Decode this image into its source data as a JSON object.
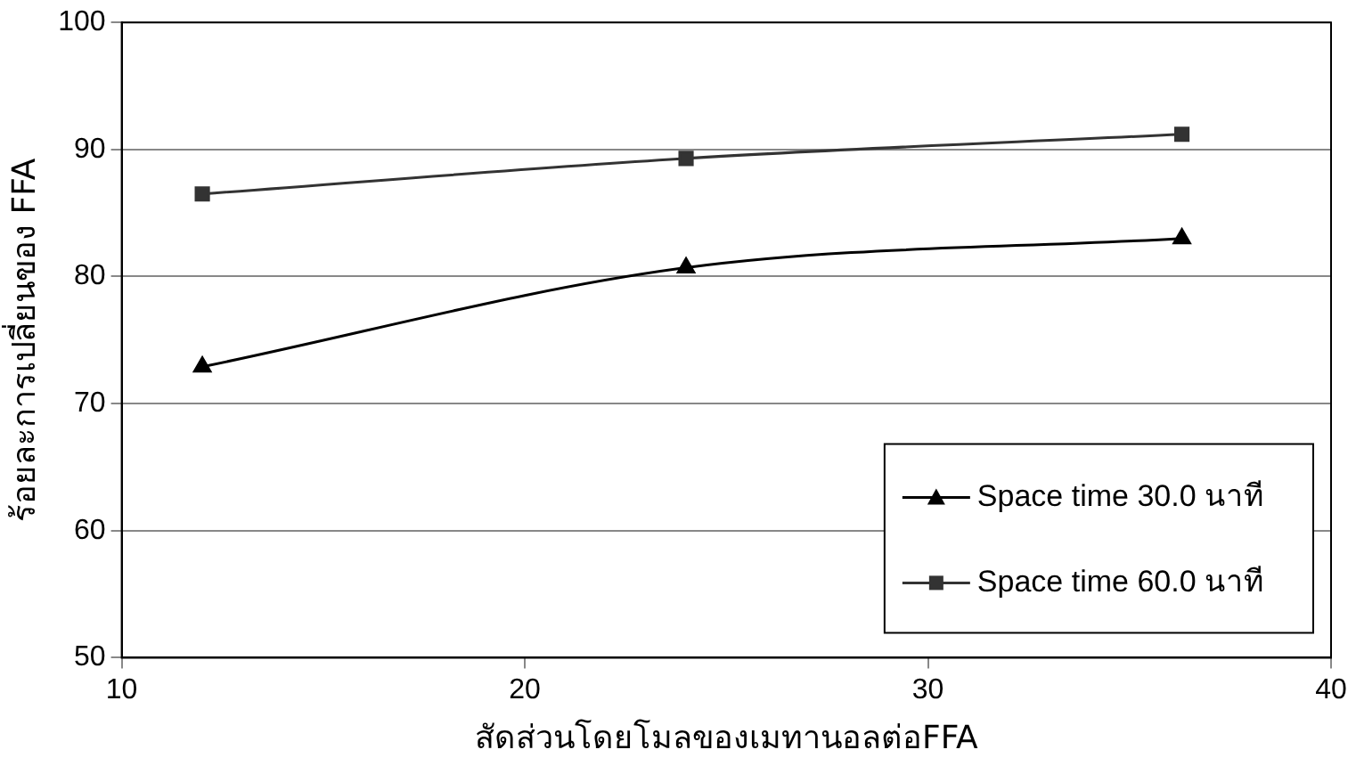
{
  "chart_data": {
    "type": "line",
    "xlabel": "สัดส่วนโดยโมลของเมทานอลต่อFFA",
    "ylabel": "ร้อยละการเปลี่ยนของ FFA",
    "x": [
      12,
      24,
      36.3
    ],
    "series": [
      {
        "name": "Space time 30.0 นาที",
        "color": "#000000",
        "values": [
          72.9,
          80.7,
          83.0
        ],
        "marker": "triangle"
      },
      {
        "name": "Space time 60.0 นาที",
        "color": "#333333",
        "values": [
          86.5,
          89.3,
          91.2
        ],
        "marker": "square"
      }
    ],
    "xlim": [
      10,
      40
    ],
    "xticks": [
      10,
      20,
      30,
      40
    ],
    "ylim": [
      50,
      100
    ],
    "yticks": [
      50,
      60,
      70,
      80,
      90,
      100
    ],
    "grid": "y",
    "legend": "bottom right"
  }
}
